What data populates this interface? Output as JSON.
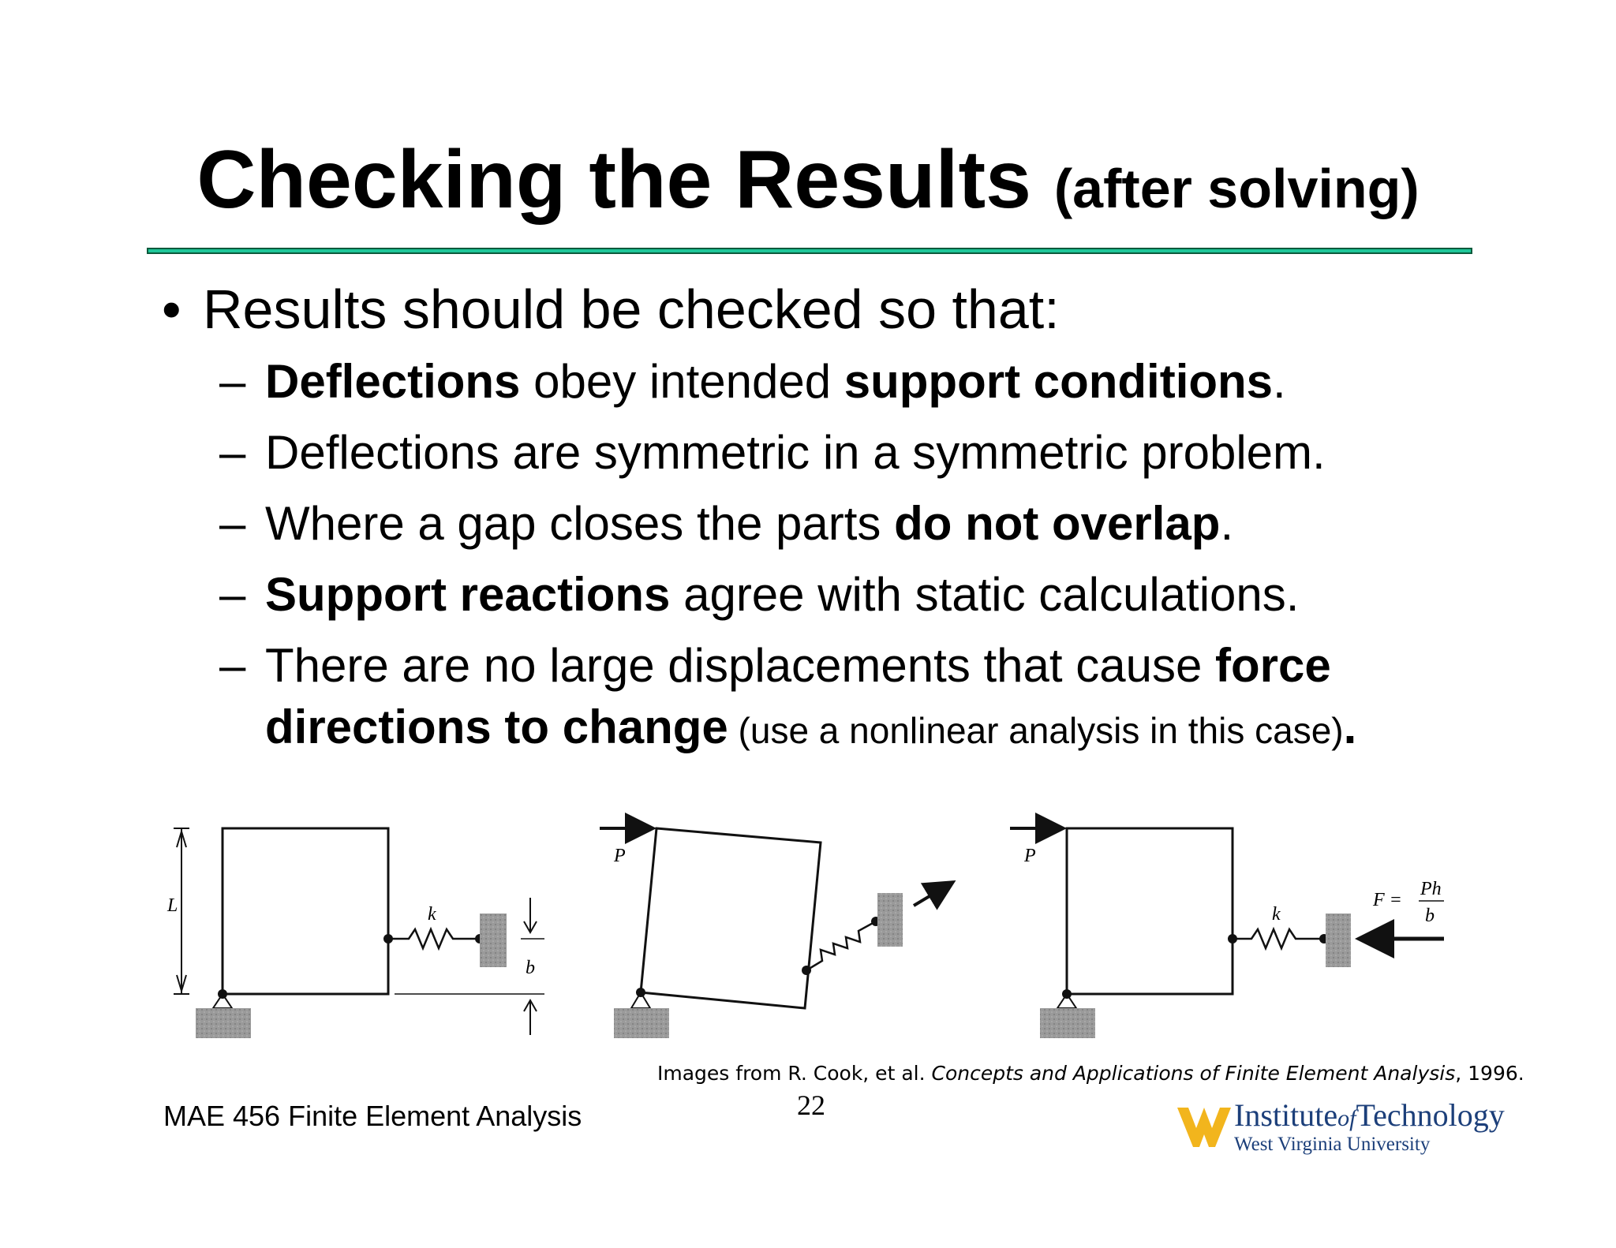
{
  "slide": {
    "title_main": "Checking the Results",
    "title_sub": "(after solving)",
    "bullet": "•",
    "main_point": "Results should be checked so that:",
    "dash": "–",
    "items": {
      "i1": {
        "b1": "Deflections",
        "t1": " obey intended ",
        "b2": "support conditions",
        "t2": "."
      },
      "i2": {
        "t1": "Deflections are symmetric in a symmetric problem."
      },
      "i3": {
        "t1": "Where a gap closes the parts ",
        "b1": "do not overlap",
        "t2": "."
      },
      "i4": {
        "b1": "Support reactions",
        "t1": " agree with static calculations."
      },
      "i5": {
        "t1": "There are no large displacements that cause ",
        "b1": "force",
        "b2": "directions to change",
        "s1": " (use a nonlinear analysis in this case)",
        "b3": "."
      }
    }
  },
  "figures": {
    "fig1": {
      "length_label": "L",
      "spring_label": "k",
      "gap_label": "b"
    },
    "fig2": {
      "load_label": "P"
    },
    "fig3": {
      "load_label": "P",
      "spring_label": "k",
      "force_lhs": "F =",
      "force_num": "Ph",
      "force_den": "b"
    }
  },
  "footer": {
    "caption_prefix": "Images from R. Cook, et al. ",
    "caption_title": "Concepts and Applications of Finite Element Analysis",
    "caption_suffix": ", 1996.",
    "course": "MAE 456 Finite Element Analysis",
    "page_number": "22",
    "logo_line1_a": "Institute",
    "logo_line1_of": "of",
    "logo_line1_b": "Technology",
    "logo_line2": "West Virginia University"
  },
  "colors": {
    "rule_fill": "#1fc79a",
    "rule_border": "#0c5a3c",
    "logo_blue": "#1c3f7a",
    "logo_gold": "#f2b51d",
    "hatch_gray": "#9a9a9a"
  }
}
